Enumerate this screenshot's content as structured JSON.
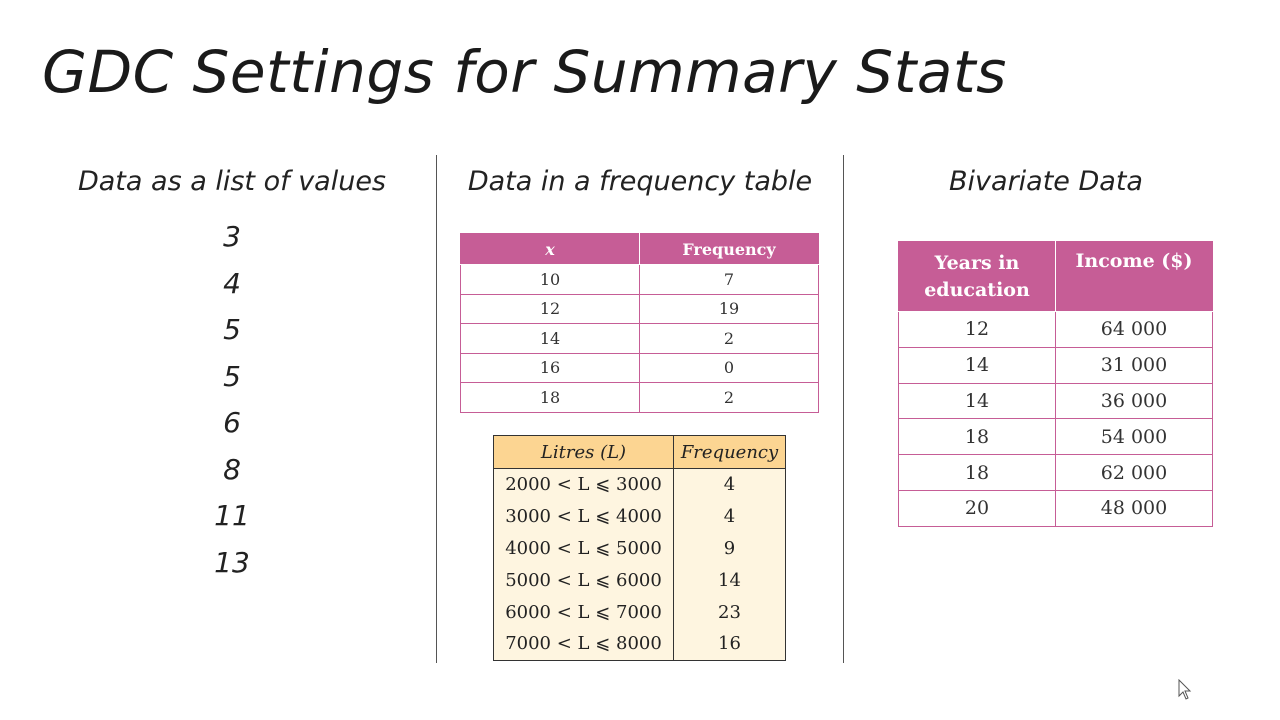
{
  "title": "GDC Settings for Summary Stats",
  "columns": {
    "list": {
      "heading": "Data as a list of values",
      "values": [
        "3",
        "4",
        "5",
        "5",
        "6",
        "8",
        "11",
        "13"
      ]
    },
    "frequency": {
      "heading": "Data in a frequency table",
      "table1": {
        "headers": [
          "x",
          "Frequency"
        ],
        "rows": [
          [
            "10",
            "7"
          ],
          [
            "12",
            "19"
          ],
          [
            "14",
            "2"
          ],
          [
            "16",
            "0"
          ],
          [
            "18",
            "2"
          ]
        ]
      },
      "table2": {
        "headers": [
          "Litres (L)",
          "Frequency"
        ],
        "rows": [
          [
            "2000 < L ⩽ 3000",
            "4"
          ],
          [
            "3000 < L ⩽ 4000",
            "4"
          ],
          [
            "4000 < L ⩽ 5000",
            "9"
          ],
          [
            "5000 < L ⩽ 6000",
            "14"
          ],
          [
            "6000 < L ⩽ 7000",
            "23"
          ],
          [
            "7000 < L ⩽ 8000",
            "16"
          ]
        ]
      }
    },
    "bivariate": {
      "heading": "Bivariate Data",
      "table": {
        "header_line1": "Years in",
        "header_line2": "education",
        "header2": "Income ($)",
        "rows": [
          [
            "12",
            "64 000"
          ],
          [
            "14",
            "31 000"
          ],
          [
            "14",
            "36 000"
          ],
          [
            "18",
            "54 000"
          ],
          [
            "18",
            "62 000"
          ],
          [
            "20",
            "48 000"
          ]
        ]
      }
    }
  },
  "colors": {
    "pink": "#c65d96",
    "yellow_header": "#fcd592",
    "yellow_body": "#fef5e0"
  },
  "icons": {
    "cursor": "mouse-pointer-icon"
  }
}
